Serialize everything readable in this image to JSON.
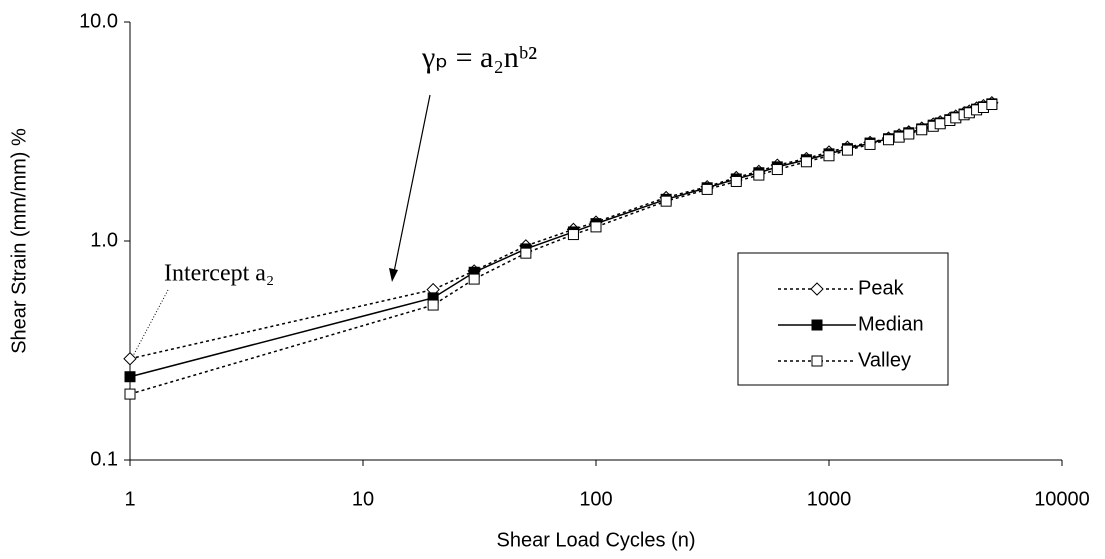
{
  "chart_data": {
    "type": "line",
    "x_label": "Shear Load Cycles (n)",
    "y_label": "Shear Strain (mm/mm) %",
    "annotations": [
      "Intercept a₂",
      "γₚ = a₂nᵇ²"
    ],
    "log_x": true,
    "log_y": true,
    "xlim": [
      1,
      10000
    ],
    "xticks": [
      1,
      10,
      100,
      1000,
      10000
    ],
    "ylim": [
      0.1,
      10
    ],
    "yticks": [
      0.1,
      {
        "value": 1,
        "label": "1.0"
      },
      {
        "value": 10,
        "label": "10.0"
      }
    ],
    "legend": "right",
    "x": [
      1,
      20,
      30,
      50,
      80,
      100,
      200,
      300,
      400,
      500,
      600,
      800,
      1000,
      1200,
      1500,
      1800,
      2000,
      2200,
      2500,
      2800,
      3000,
      3300,
      3500,
      3800,
      4000,
      4300,
      4600,
      5000
    ],
    "series": [
      {
        "name": "Peak",
        "color": "#000000",
        "marker": "diamond",
        "line": "dotted",
        "values": [
          0.29,
          0.6,
          0.73,
          0.95,
          1.13,
          1.22,
          1.58,
          1.77,
          1.95,
          2.08,
          2.22,
          2.38,
          2.55,
          2.68,
          2.82,
          2.95,
          3.05,
          3.15,
          3.28,
          3.42,
          3.5,
          3.62,
          3.72,
          3.85,
          3.92,
          4.05,
          4.15,
          4.28
        ]
      },
      {
        "name": "Median",
        "color": "#000000",
        "marker": "filled-square",
        "line": "solid",
        "values": [
          0.24,
          0.55,
          0.72,
          0.92,
          1.1,
          1.2,
          1.55,
          1.75,
          1.92,
          2.05,
          2.18,
          2.35,
          2.5,
          2.64,
          2.8,
          2.93,
          3.02,
          3.12,
          3.25,
          3.38,
          3.46,
          3.58,
          3.68,
          3.8,
          3.88,
          4.0,
          4.1,
          4.23
        ]
      },
      {
        "name": "Valley",
        "color": "#000000",
        "marker": "square",
        "line": "dotted",
        "values": [
          0.2,
          0.51,
          0.67,
          0.88,
          1.07,
          1.16,
          1.52,
          1.72,
          1.87,
          2.0,
          2.12,
          2.3,
          2.45,
          2.6,
          2.76,
          2.9,
          2.98,
          3.08,
          3.22,
          3.34,
          3.43,
          3.55,
          3.65,
          3.77,
          3.85,
          3.97,
          4.07,
          4.2
        ]
      }
    ]
  }
}
